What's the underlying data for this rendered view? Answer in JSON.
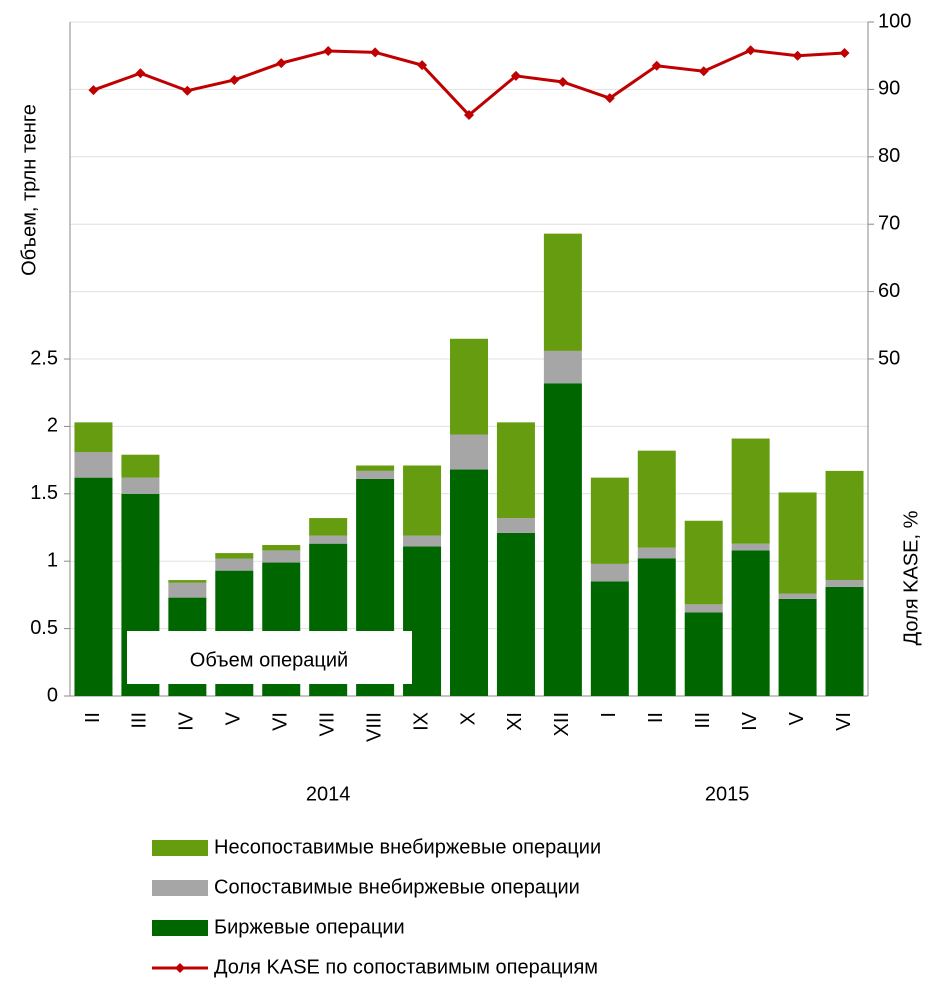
{
  "chart_data": {
    "type": "bar",
    "stacked": true,
    "y_label": "Объем, трлн тенге",
    "y2_label": "Доля KASE, %",
    "annotation": "Объем операций",
    "categories": [
      "II",
      "III",
      "IV",
      "V",
      "VI",
      "VII",
      "VIII",
      "IX",
      "X",
      "XI",
      "XII",
      "I",
      "II",
      "III",
      "IV",
      "V",
      "VI"
    ],
    "groups": [
      {
        "label": "2014",
        "start": 0,
        "end": 10
      },
      {
        "label": "2015",
        "start": 11,
        "end": 16
      }
    ],
    "series": [
      {
        "name": "Биржевые операции",
        "color": "#006600",
        "type": "bar",
        "values": [
          1.62,
          1.5,
          0.73,
          0.93,
          0.99,
          1.13,
          1.61,
          1.11,
          1.68,
          1.21,
          2.32,
          0.85,
          1.02,
          0.62,
          1.08,
          0.72,
          0.81
        ]
      },
      {
        "name": "Сопоставимые внебиржевые операции",
        "color": "#a6a6a6",
        "type": "bar",
        "values": [
          0.19,
          0.12,
          0.11,
          0.09,
          0.09,
          0.06,
          0.06,
          0.08,
          0.26,
          0.11,
          0.24,
          0.13,
          0.08,
          0.06,
          0.05,
          0.04,
          0.05
        ]
      },
      {
        "name": "Несопоставимые внебиржевые операции",
        "color": "#669c0f",
        "type": "bar",
        "values": [
          0.22,
          0.17,
          0.02,
          0.04,
          0.04,
          0.13,
          0.04,
          0.52,
          0.71,
          0.71,
          0.87,
          0.64,
          0.72,
          0.62,
          0.78,
          0.75,
          0.81
        ]
      },
      {
        "name": "Доля KASE по сопоставимым операциям",
        "color": "#c00000",
        "type": "line",
        "axis": "y2",
        "values": [
          89.9,
          92.4,
          89.8,
          91.4,
          93.9,
          95.7,
          95.5,
          93.6,
          86.2,
          92.0,
          91.1,
          88.7,
          93.5,
          92.7,
          95.8,
          95.0,
          95.4
        ]
      }
    ],
    "ylim": [
      0,
      5
    ],
    "yticks": [
      0,
      0.5,
      1,
      1.5,
      2,
      2.5
    ],
    "y2lim": [
      0,
      100
    ],
    "y2ticks": [
      50,
      60,
      70,
      80,
      90,
      100
    ],
    "grid": true
  }
}
